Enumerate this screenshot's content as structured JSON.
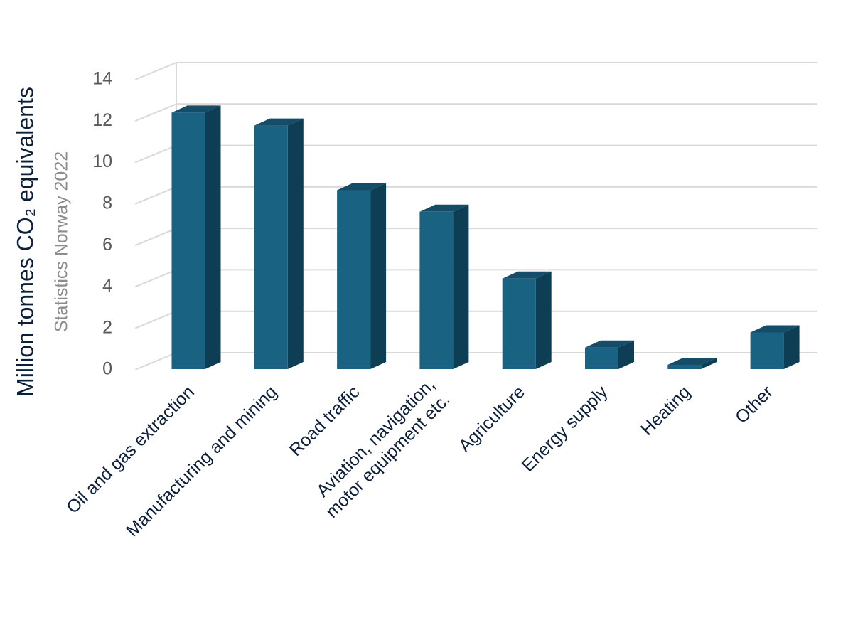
{
  "chart_data": {
    "type": "bar3d",
    "y_label": "Million tonnes CO₂ equivalents",
    "subtitle": "Statistics Norway 2022",
    "categories": [
      "Oil and gas extraction",
      "Manufacturing and mining",
      "Road traffic",
      "Aviation, navigation,\nmotor equipment etc.",
      "Agriculture",
      "Energy supply",
      "Heating",
      "Other"
    ],
    "values": [
      11.9,
      11.3,
      8.3,
      7.3,
      4.2,
      1.0,
      0.2,
      1.7
    ],
    "color": "#1a6282",
    "ylim": [
      0,
      14
    ],
    "yticks": [
      0,
      2,
      4,
      6,
      8,
      10,
      12,
      14
    ],
    "grid": true
  }
}
